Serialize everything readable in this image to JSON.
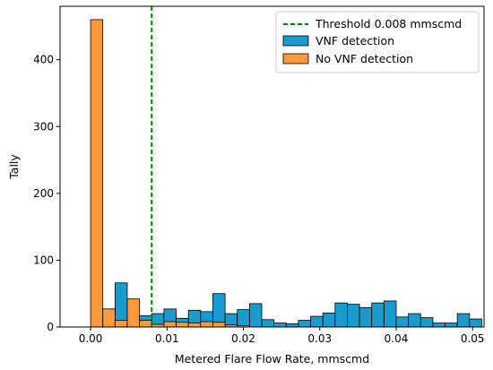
{
  "chart_data": {
    "type": "bar",
    "xlabel": "Metered Flare Flow Rate, mmscmd",
    "ylabel": "Tally",
    "xlim": [
      -0.004,
      0.0515
    ],
    "ylim": [
      0,
      480
    ],
    "x_ticks": [
      0.0,
      0.01,
      0.02,
      0.03,
      0.04,
      0.05
    ],
    "x_tick_labels": [
      "0.00",
      "0.01",
      "0.02",
      "0.03",
      "0.04",
      "0.05"
    ],
    "y_ticks": [
      0,
      100,
      200,
      300,
      400
    ],
    "y_tick_labels": [
      "0",
      "100",
      "200",
      "300",
      "400"
    ],
    "threshold": {
      "value": 0.008,
      "label": "Threshold 0.008 mmscmd",
      "color": "#008000"
    },
    "legend_position": "top-right",
    "series": [
      {
        "name": "VNF detection",
        "color": "#1a9bd0",
        "bin_width": 0.0016,
        "bins": [
          [
            0.0016,
            0.0032,
            27
          ],
          [
            0.0032,
            0.0048,
            66
          ],
          [
            0.0048,
            0.0064,
            28
          ],
          [
            0.0064,
            0.008,
            17
          ],
          [
            0.008,
            0.0096,
            20
          ],
          [
            0.0096,
            0.0112,
            27
          ],
          [
            0.0112,
            0.0128,
            13
          ],
          [
            0.0128,
            0.0144,
            25
          ],
          [
            0.0144,
            0.016,
            23
          ],
          [
            0.016,
            0.0176,
            50
          ],
          [
            0.0176,
            0.0192,
            20
          ],
          [
            0.0192,
            0.0208,
            26
          ],
          [
            0.0208,
            0.0224,
            35
          ],
          [
            0.0224,
            0.024,
            11
          ],
          [
            0.024,
            0.0256,
            6
          ],
          [
            0.0256,
            0.0272,
            5
          ],
          [
            0.0272,
            0.0288,
            10
          ],
          [
            0.0288,
            0.0304,
            16
          ],
          [
            0.0304,
            0.032,
            21
          ],
          [
            0.032,
            0.0336,
            36
          ],
          [
            0.0336,
            0.0352,
            34
          ],
          [
            0.0352,
            0.0368,
            29
          ],
          [
            0.0368,
            0.0384,
            36
          ],
          [
            0.0384,
            0.04,
            39
          ],
          [
            0.04,
            0.0416,
            15
          ],
          [
            0.0416,
            0.0432,
            20
          ],
          [
            0.0432,
            0.0448,
            14
          ],
          [
            0.0448,
            0.0464,
            6
          ],
          [
            0.0464,
            0.048,
            6
          ],
          [
            0.048,
            0.0496,
            20
          ],
          [
            0.0496,
            0.0512,
            12
          ]
        ]
      },
      {
        "name": "No VNF detection",
        "color": "#ff9a3c",
        "bin_width": 0.0016,
        "bins": [
          [
            0.0,
            0.0016,
            460
          ],
          [
            0.0016,
            0.0032,
            27
          ],
          [
            0.0032,
            0.0048,
            10
          ],
          [
            0.0048,
            0.0064,
            42
          ],
          [
            0.0064,
            0.008,
            10
          ],
          [
            0.008,
            0.0096,
            4
          ],
          [
            0.0096,
            0.0112,
            8
          ],
          [
            0.0112,
            0.0128,
            7
          ],
          [
            0.0128,
            0.0144,
            6
          ],
          [
            0.0144,
            0.016,
            8
          ],
          [
            0.016,
            0.0176,
            7
          ],
          [
            0.0176,
            0.0192,
            3
          ],
          [
            0.0192,
            0.0208,
            2
          ]
        ]
      }
    ]
  }
}
